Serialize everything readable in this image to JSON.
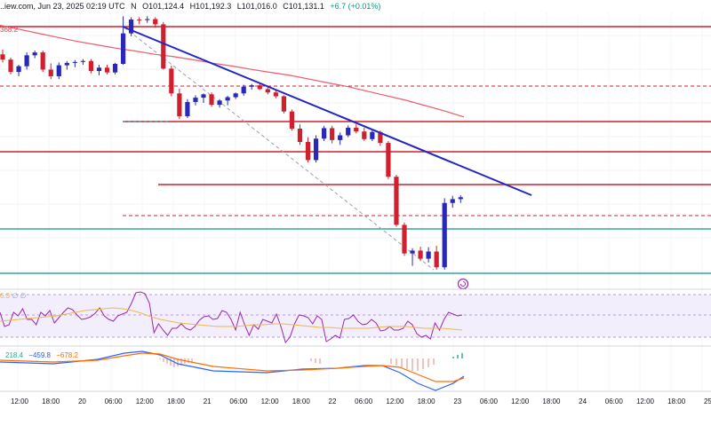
{
  "header": {
    "source": "..iew.com, Jun 23, 2025 02:19 UTC",
    "symbol_tail": "N",
    "open": "O101,124.4",
    "high": "H101,192.3",
    "low": "L101,016.0",
    "close": "C101,131.1",
    "change": "+6.7 (+0.01%)"
  },
  "price_label": {
    "text": "368.2",
    "color": "#f23645"
  },
  "rsi_label": {
    "value_text": "6.3",
    "ghost_text": "∅ ∅"
  },
  "macd_labels": {
    "a": "218.4",
    "b": "−459.8",
    "c": "−678.2"
  },
  "chart_data": {
    "type": "candlestick",
    "x_ticks": [
      "12:00",
      "18:00",
      "20",
      "06:00",
      "12:00",
      "18:00",
      "21",
      "06:00",
      "12:00",
      "18:00",
      "22",
      "06:00",
      "12:00",
      "18:00",
      "23",
      "06:00",
      "12:00",
      "18:00",
      "24",
      "06:00",
      "12:00",
      "18:00",
      "25"
    ],
    "y_range": [
      100700,
      106400
    ],
    "ma": [
      106130,
      106045,
      105960,
      105875,
      105790,
      105720,
      105650,
      105590,
      105520,
      105470,
      105405,
      105335,
      105275,
      105205,
      105140,
      105080,
      105000,
      104920,
      104840,
      104745,
      104650,
      104555,
      104445,
      104330,
      104205
    ],
    "ohlc": [
      [
        105520,
        105620,
        105350,
        105410
      ],
      [
        105410,
        105450,
        105100,
        105150
      ],
      [
        105150,
        105300,
        105060,
        105270
      ],
      [
        105270,
        105560,
        105200,
        105500
      ],
      [
        105500,
        105600,
        105440,
        105560
      ],
      [
        105560,
        105600,
        105150,
        105200
      ],
      [
        105200,
        105330,
        105000,
        105060
      ],
      [
        105060,
        105350,
        105000,
        105290
      ],
      [
        105290,
        105380,
        105200,
        105340
      ],
      [
        105340,
        105400,
        105250,
        105360
      ],
      [
        105360,
        105420,
        105300,
        105380
      ],
      [
        105380,
        105420,
        105120,
        105170
      ],
      [
        105170,
        105300,
        105080,
        105240
      ],
      [
        105240,
        105300,
        105100,
        105140
      ],
      [
        105140,
        105340,
        105100,
        105320
      ],
      [
        105320,
        106320,
        105300,
        105960
      ],
      [
        105960,
        106300,
        105900,
        106250
      ],
      [
        106250,
        106300,
        106150,
        106240
      ],
      [
        106240,
        106320,
        106180,
        106260
      ],
      [
        106260,
        106300,
        106080,
        106150
      ],
      [
        106150,
        106200,
        105200,
        105220
      ],
      [
        105220,
        105280,
        104640,
        104700
      ],
      [
        104700,
        104800,
        104160,
        104220
      ],
      [
        104220,
        104580,
        104180,
        104520
      ],
      [
        104520,
        104660,
        104450,
        104610
      ],
      [
        104610,
        104700,
        104500,
        104680
      ],
      [
        104680,
        104720,
        104420,
        104460
      ],
      [
        104460,
        104580,
        104400,
        104550
      ],
      [
        104550,
        104650,
        104450,
        104620
      ],
      [
        104620,
        104720,
        104580,
        104700
      ],
      [
        104700,
        104880,
        104650,
        104840
      ],
      [
        104840,
        104900,
        104780,
        104870
      ],
      [
        104870,
        104900,
        104770,
        104790
      ],
      [
        104790,
        104840,
        104680,
        104720
      ],
      [
        104720,
        104780,
        104600,
        104640
      ],
      [
        104640,
        104660,
        104280,
        104320
      ],
      [
        104320,
        104360,
        103920,
        103960
      ],
      [
        103960,
        104050,
        103620,
        103680
      ],
      [
        103680,
        103780,
        103250,
        103300
      ],
      [
        103300,
        103820,
        103250,
        103750
      ],
      [
        103750,
        104020,
        103700,
        103970
      ],
      [
        103970,
        104020,
        103650,
        103720
      ],
      [
        103720,
        103880,
        103620,
        103820
      ],
      [
        103820,
        104030,
        103780,
        103980
      ],
      [
        103980,
        104050,
        103860,
        103900
      ],
      [
        103900,
        103980,
        103700,
        103740
      ],
      [
        103740,
        103940,
        103700,
        103890
      ],
      [
        103890,
        103920,
        103600,
        103660
      ],
      [
        103660,
        103700,
        102900,
        102950
      ],
      [
        102950,
        102990,
        101900,
        101940
      ],
      [
        101940,
        101990,
        101290,
        101340
      ],
      [
        101340,
        101450,
        101080,
        101400
      ],
      [
        101400,
        101480,
        101180,
        101230
      ],
      [
        101230,
        101470,
        101150,
        101380
      ],
      [
        101380,
        101500,
        101000,
        101050
      ],
      [
        101050,
        102500,
        101000,
        102400
      ],
      [
        102400,
        102550,
        102300,
        102480
      ],
      [
        102480,
        102560,
        102400,
        102520
      ]
    ]
  },
  "axis": {
    "tick_color": "#131722",
    "bull": "#2829b8",
    "bear": "#d0202d"
  }
}
